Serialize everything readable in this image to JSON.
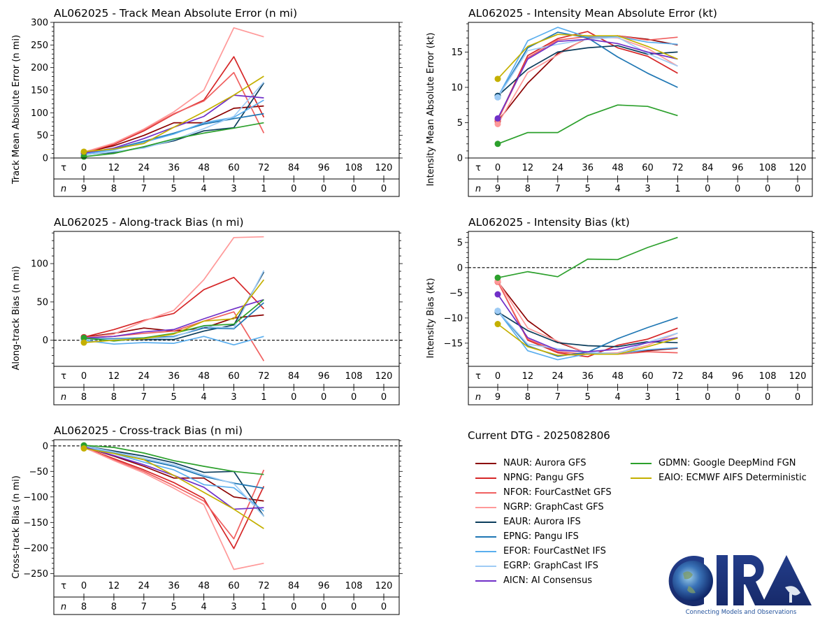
{
  "storm_id": "AL062025",
  "dtg_label": "Current DTG - 2025082806",
  "logo": {
    "name": "CIRA",
    "tagline": "Connecting Models and Observations"
  },
  "models": [
    {
      "id": "NAUR",
      "label": "NAUR: Aurora GFS",
      "color": "#8b0000"
    },
    {
      "id": "NPNG",
      "label": "NPNG: Pangu GFS",
      "color": "#d62728"
    },
    {
      "id": "NFOR",
      "label": "NFOR: FourCastNet GFS",
      "color": "#f06060"
    },
    {
      "id": "NGRP",
      "label": "NGRP: GraphCast GFS",
      "color": "#ff9999"
    },
    {
      "id": "EAUR",
      "label": "EAUR: Aurora IFS",
      "color": "#0b3d5c"
    },
    {
      "id": "EPNG",
      "label": "EPNG: Pangu IFS",
      "color": "#1f77b4"
    },
    {
      "id": "EFOR",
      "label": "EFOR: FourCastNet IFS",
      "color": "#5aaeee"
    },
    {
      "id": "EGRP",
      "label": "EGRP: GraphCast IFS",
      "color": "#9ecbf5"
    },
    {
      "id": "AICN",
      "label": "AICN: AI Consensus",
      "color": "#7030c8"
    },
    {
      "id": "GDMN",
      "label": "GDMN: Google DeepMind FGN",
      "color": "#2ca02c"
    },
    {
      "id": "EAIO",
      "label": "EAIO: ECMWF AIFS Deterministic",
      "color": "#c4b000"
    }
  ],
  "chart_data": [
    {
      "id": "track_mae",
      "type": "line",
      "title": "AL062025 - Track Mean Absolute Error (n mi)",
      "ylabel": "Track Mean Absolute Error (n mi)",
      "xlabel": "",
      "ylim": [
        0,
        300
      ],
      "yticks": [
        0,
        50,
        100,
        150,
        200,
        250,
        300
      ],
      "y_minor_step": 10,
      "zero_line": false,
      "tau_label": "τ",
      "n_label": "n",
      "x": [
        0,
        12,
        24,
        36,
        48,
        60,
        72
      ],
      "x_ticks": [
        "0",
        "12",
        "24",
        "36",
        "48",
        "60",
        "72",
        "84",
        "96",
        "108",
        "120"
      ],
      "n_values": [
        "9",
        "8",
        "7",
        "5",
        "4",
        "3",
        "1",
        "0",
        "0",
        "0",
        "0"
      ],
      "series": [
        {
          "model": "NAUR",
          "values": [
            12,
            27,
            50,
            78,
            78,
            110,
            115
          ]
        },
        {
          "model": "NPNG",
          "values": [
            12,
            30,
            60,
            97,
            128,
            224,
            90
          ]
        },
        {
          "model": "NFOR",
          "values": [
            12,
            32,
            62,
            98,
            126,
            189,
            55
          ]
        },
        {
          "model": "NGRP",
          "values": [
            13,
            33,
            64,
            102,
            150,
            288,
            268
          ]
        },
        {
          "model": "EAUR",
          "values": [
            8,
            12,
            24,
            38,
            60,
            67,
            166
          ]
        },
        {
          "model": "EPNG",
          "values": [
            10,
            20,
            37,
            55,
            75,
            87,
            98
          ]
        },
        {
          "model": "EFOR",
          "values": [
            9,
            18,
            35,
            53,
            78,
            90,
            128
          ]
        },
        {
          "model": "EGRP",
          "values": [
            7,
            14,
            22,
            40,
            65,
            92,
            168
          ]
        },
        {
          "model": "AICN",
          "values": [
            11,
            22,
            43,
            68,
            92,
            139,
            133
          ]
        },
        {
          "model": "GDMN",
          "values": [
            3,
            10,
            25,
            42,
            55,
            66,
            78
          ]
        },
        {
          "model": "EAIO",
          "values": [
            14,
            20,
            32,
            68,
            102,
            139,
            181
          ]
        }
      ]
    },
    {
      "id": "intensity_mae",
      "type": "line",
      "title": "AL062025 - Intensity Mean Absolute Error (kt)",
      "ylabel": "Intensity Mean Absolute Error (kt)",
      "xlabel": "",
      "ylim": [
        0,
        19.2
      ],
      "yticks": [
        0,
        5,
        10,
        15
      ],
      "y_minor_step": 1,
      "zero_line": false,
      "tau_label": "τ",
      "n_label": "n",
      "x": [
        0,
        12,
        24,
        36,
        48,
        60,
        72
      ],
      "x_ticks": [
        "0",
        "12",
        "24",
        "36",
        "48",
        "60",
        "72",
        "84",
        "96",
        "108",
        "120"
      ],
      "n_values": [
        "9",
        "8",
        "7",
        "5",
        "4",
        "3",
        "1",
        "0",
        "0",
        "0",
        "0"
      ],
      "series": [
        {
          "model": "NAUR",
          "values": [
            5.2,
            10.6,
            14.8,
            17.0,
            17.3,
            16.8,
            16.0
          ]
        },
        {
          "model": "NPNG",
          "values": [
            5.4,
            14.5,
            16.9,
            17.9,
            15.6,
            14.4,
            12.0
          ]
        },
        {
          "model": "NFOR",
          "values": [
            5.3,
            14.2,
            16.7,
            17.2,
            17.3,
            16.7,
            17.1
          ]
        },
        {
          "model": "NGRP",
          "values": [
            4.8,
            12.1,
            14.6,
            17.1,
            17.0,
            15.5,
            13.0
          ]
        },
        {
          "model": "EAUR",
          "values": [
            8.8,
            12.6,
            15.0,
            15.6,
            15.9,
            14.7,
            15.0
          ]
        },
        {
          "model": "EPNG",
          "values": [
            8.6,
            15.6,
            17.8,
            17.0,
            14.3,
            12.0,
            10.0
          ]
        },
        {
          "model": "EFOR",
          "values": [
            8.6,
            16.6,
            18.5,
            17.1,
            17.2,
            16.4,
            16.1
          ]
        },
        {
          "model": "EGRP",
          "values": [
            8.6,
            15.2,
            16.1,
            16.8,
            17.1,
            14.8,
            13.0
          ]
        },
        {
          "model": "AICN",
          "values": [
            5.6,
            14.0,
            16.5,
            16.8,
            16.2,
            15.0,
            14.0
          ]
        },
        {
          "model": "GDMN",
          "values": [
            2.0,
            3.6,
            3.6,
            6.0,
            7.5,
            7.3,
            6.0
          ]
        },
        {
          "model": "EAIO",
          "values": [
            11.2,
            15.8,
            17.5,
            17.3,
            17.3,
            15.8,
            14.0
          ]
        }
      ]
    },
    {
      "id": "along_track_bias",
      "type": "line",
      "title": "AL062025 - Along-track Bias (n mi)",
      "ylabel": "Along-track Bias (n mi)",
      "xlabel": "",
      "ylim": [
        -34,
        142
      ],
      "yticks": [
        0,
        50,
        100
      ],
      "y_minor_step": 10,
      "zero_line": true,
      "tau_label": "τ",
      "n_label": "n",
      "x": [
        0,
        12,
        24,
        36,
        48,
        60,
        72
      ],
      "x_ticks": [
        "0",
        "12",
        "24",
        "36",
        "48",
        "60",
        "72",
        "84",
        "96",
        "108",
        "120"
      ],
      "n_values": [
        "8",
        "8",
        "7",
        "5",
        "4",
        "3",
        "1",
        "0",
        "0",
        "0",
        "0"
      ],
      "series": [
        {
          "model": "NAUR",
          "values": [
            4,
            9,
            16,
            12,
            16,
            29,
            33
          ]
        },
        {
          "model": "NPNG",
          "values": [
            4,
            14,
            26,
            35,
            66,
            82,
            41
          ]
        },
        {
          "model": "NFOR",
          "values": [
            3,
            5,
            9,
            12,
            25,
            37,
            -27
          ]
        },
        {
          "model": "NGRP",
          "values": [
            3,
            8,
            25,
            39,
            79,
            134,
            135
          ]
        },
        {
          "model": "EAUR",
          "values": [
            2,
            1,
            1,
            1,
            12,
            20,
            89
          ]
        },
        {
          "model": "EPNG",
          "values": [
            2,
            2,
            3,
            5,
            16,
            15,
            49
          ]
        },
        {
          "model": "EFOR",
          "values": [
            0,
            -5,
            -3,
            -4,
            5,
            -6,
            5
          ]
        },
        {
          "model": "EGRP",
          "values": [
            1,
            1,
            2,
            4,
            18,
            16,
            91
          ]
        },
        {
          "model": "AICN",
          "values": [
            3,
            5,
            11,
            14,
            28,
            41,
            53
          ]
        },
        {
          "model": "GDMN",
          "values": [
            3,
            -1,
            3,
            9,
            19,
            21,
            53
          ]
        },
        {
          "model": "EAIO",
          "values": [
            -3,
            0,
            2,
            8,
            25,
            28,
            79
          ]
        }
      ]
    },
    {
      "id": "intensity_bias",
      "type": "line",
      "title": "AL062025 - Intensity Bias (kt)",
      "ylabel": "Intensity Bias (kt)",
      "xlabel": "",
      "ylim": [
        -19.6,
        7.2
      ],
      "yticks": [
        -15,
        -10,
        -5,
        0,
        5
      ],
      "y_minor_step": 1,
      "zero_line": true,
      "tau_label": "τ",
      "n_label": "n",
      "x": [
        0,
        12,
        24,
        36,
        48,
        60,
        72
      ],
      "x_ticks": [
        "0",
        "12",
        "24",
        "36",
        "48",
        "60",
        "72",
        "84",
        "96",
        "108",
        "120"
      ],
      "n_values": [
        "9",
        "8",
        "7",
        "5",
        "4",
        "3",
        "1",
        "0",
        "0",
        "0",
        "0"
      ],
      "series": [
        {
          "model": "NAUR",
          "values": [
            -2.8,
            -10.5,
            -14.8,
            -17.0,
            -17.0,
            -16.5,
            -16.0
          ]
        },
        {
          "model": "NPNG",
          "values": [
            -2.8,
            -14.4,
            -16.9,
            -17.7,
            -15.4,
            -14.2,
            -12.0
          ]
        },
        {
          "model": "NFOR",
          "values": [
            -2.8,
            -14.2,
            -16.7,
            -17.2,
            -17.2,
            -16.7,
            -16.9
          ]
        },
        {
          "model": "NGRP",
          "values": [
            -2.7,
            -12.0,
            -14.6,
            -17.0,
            -16.9,
            -15.4,
            -13.0
          ]
        },
        {
          "model": "EAUR",
          "values": [
            -8.8,
            -12.5,
            -14.9,
            -15.5,
            -15.7,
            -14.7,
            -14.9
          ]
        },
        {
          "model": "EPNG",
          "values": [
            -8.6,
            -15.5,
            -17.6,
            -16.8,
            -14.1,
            -11.9,
            -9.9
          ]
        },
        {
          "model": "EFOR",
          "values": [
            -8.6,
            -16.5,
            -18.3,
            -17.1,
            -17.1,
            -16.3,
            -15.9
          ]
        },
        {
          "model": "EGRP",
          "values": [
            -8.6,
            -15.2,
            -16.1,
            -16.8,
            -17.1,
            -14.8,
            -13.0
          ]
        },
        {
          "model": "AICN",
          "values": [
            -5.3,
            -13.9,
            -16.4,
            -16.7,
            -16.2,
            -14.9,
            -13.9
          ]
        },
        {
          "model": "GDMN",
          "values": [
            -2.0,
            -0.8,
            -1.8,
            1.7,
            1.6,
            4.0,
            6.0
          ]
        },
        {
          "model": "EAIO",
          "values": [
            -11.2,
            -15.7,
            -17.4,
            -17.2,
            -17.2,
            -15.7,
            -14.0
          ]
        }
      ]
    },
    {
      "id": "cross_track_bias",
      "type": "line",
      "title": "AL062025 - Cross-track Bias (n mi)",
      "ylabel": "Cross-track Bias (n mi)",
      "xlabel": "",
      "ylim": [
        -255,
        12
      ],
      "yticks": [
        -250,
        -200,
        -150,
        -100,
        -50,
        0
      ],
      "y_minor_step": 10,
      "zero_line": true,
      "tau_label": "τ",
      "n_label": "n",
      "x": [
        0,
        12,
        24,
        36,
        48,
        60,
        72
      ],
      "x_ticks": [
        "0",
        "12",
        "24",
        "36",
        "48",
        "60",
        "72",
        "84",
        "96",
        "108",
        "120"
      ],
      "n_values": [
        "8",
        "8",
        "7",
        "5",
        "4",
        "3",
        "1",
        "0",
        "0",
        "0",
        "0"
      ],
      "series": [
        {
          "model": "NAUR",
          "values": [
            -2,
            -20,
            -40,
            -63,
            -63,
            -100,
            -108
          ]
        },
        {
          "model": "NPNG",
          "values": [
            -3,
            -25,
            -47,
            -72,
            -103,
            -201,
            -79
          ]
        },
        {
          "model": "NFOR",
          "values": [
            -3,
            -27,
            -50,
            -78,
            -108,
            -182,
            -47
          ]
        },
        {
          "model": "NGRP",
          "values": [
            -3,
            -29,
            -53,
            -83,
            -115,
            -242,
            -230
          ]
        },
        {
          "model": "EAUR",
          "values": [
            0,
            -10,
            -20,
            -33,
            -52,
            -50,
            -138
          ]
        },
        {
          "model": "EPNG",
          "values": [
            0,
            -14,
            -27,
            -40,
            -60,
            -73,
            -83
          ]
        },
        {
          "model": "EFOR",
          "values": [
            -1,
            -15,
            -32,
            -47,
            -76,
            -82,
            -128
          ]
        },
        {
          "model": "EGRP",
          "values": [
            0,
            -12,
            -24,
            -37,
            -57,
            -74,
            -138
          ]
        },
        {
          "model": "AICN",
          "values": [
            -2,
            -19,
            -37,
            -58,
            -81,
            -124,
            -121
          ]
        },
        {
          "model": "GDMN",
          "values": [
            1,
            -3,
            -14,
            -29,
            -40,
            -50,
            -56
          ]
        },
        {
          "model": "EAIO",
          "values": [
            -5,
            -15,
            -27,
            -58,
            -91,
            -124,
            -162
          ]
        }
      ]
    }
  ]
}
